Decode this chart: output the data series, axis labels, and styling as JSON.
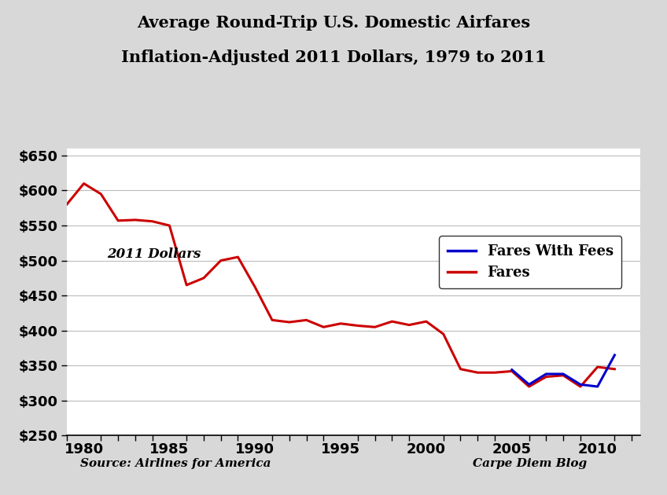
{
  "title_line1": "Average Round-Trip U.S. Domestic Airfares",
  "title_line2": "Inflation-Adjusted 2011 Dollars, 1979 to 2011",
  "annotation_dollars": "2011 Dollars",
  "annotation_source": "Source: Airlines for America",
  "annotation_blog": "Carpe Diem Blog",
  "background_color": "#d8d8d8",
  "plot_bg_color": "#ffffff",
  "fares_color": "#cc0000",
  "fares_fees_color": "#0000cc",
  "legend_fares_fees": "Fares With Fees",
  "legend_fares": "Fares",
  "ylim": [
    250,
    660
  ],
  "yticks": [
    250,
    300,
    350,
    400,
    450,
    500,
    550,
    600,
    650
  ],
  "xlim": [
    1979,
    2012.5
  ],
  "xticks": [
    1980,
    1985,
    1990,
    1995,
    2000,
    2005,
    2010
  ],
  "years": [
    1979,
    1980,
    1981,
    1982,
    1983,
    1984,
    1985,
    1986,
    1987,
    1988,
    1989,
    1990,
    1991,
    1992,
    1993,
    1994,
    1995,
    1996,
    1997,
    1998,
    1999,
    2000,
    2001,
    2002,
    2003,
    2004,
    2005,
    2006,
    2007,
    2008,
    2009,
    2010,
    2011
  ],
  "fares": [
    580,
    610,
    595,
    557,
    558,
    556,
    550,
    465,
    475,
    500,
    505,
    462,
    415,
    412,
    415,
    405,
    410,
    407,
    405,
    413,
    408,
    413,
    395,
    345,
    340,
    340,
    342,
    320,
    334,
    336,
    320,
    348,
    345
  ],
  "fares_with_fees": [
    null,
    null,
    null,
    null,
    null,
    null,
    null,
    null,
    null,
    null,
    null,
    null,
    null,
    null,
    null,
    null,
    null,
    null,
    null,
    null,
    null,
    null,
    null,
    null,
    null,
    null,
    344,
    323,
    338,
    338,
    323,
    320,
    365
  ]
}
